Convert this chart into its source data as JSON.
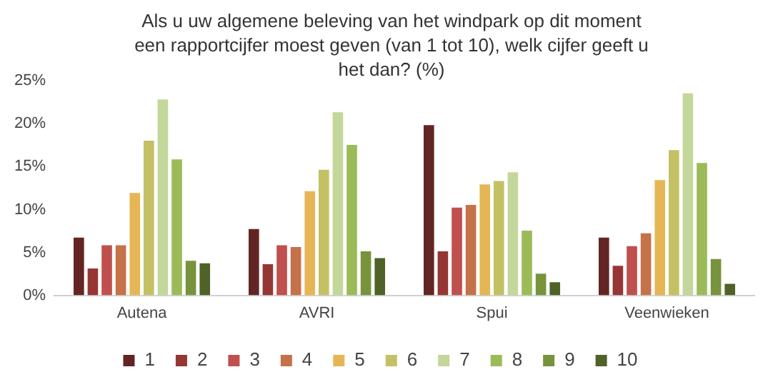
{
  "chart_data": {
    "type": "bar",
    "title": "Als u uw algemene beleving van het windpark op dit moment een rapportcijfer moest geven (van 1 tot 10), welk cijfer geeft u het dan? (%)",
    "categories": [
      "Autena",
      "AVRI",
      "Spui",
      "Veenwieken"
    ],
    "series": [
      {
        "name": "1",
        "color": "#632523",
        "values": [
          6.9,
          7.9,
          20.0,
          6.9
        ]
      },
      {
        "name": "2",
        "color": "#963634",
        "values": [
          3.3,
          3.8,
          5.3,
          3.6
        ]
      },
      {
        "name": "3",
        "color": "#c0504d",
        "values": [
          6.0,
          6.0,
          10.4,
          5.9
        ]
      },
      {
        "name": "4",
        "color": "#c5714a",
        "values": [
          6.0,
          5.8,
          10.7,
          7.4
        ]
      },
      {
        "name": "5",
        "color": "#e6b656",
        "values": [
          12.1,
          12.3,
          13.1,
          13.6
        ]
      },
      {
        "name": "6",
        "color": "#c3c163",
        "values": [
          18.2,
          14.8,
          13.5,
          17.1
        ]
      },
      {
        "name": "7",
        "color": "#c4d79b",
        "values": [
          23.0,
          21.5,
          14.5,
          23.7
        ]
      },
      {
        "name": "8",
        "color": "#9bbb59",
        "values": [
          16.0,
          17.7,
          7.7,
          15.6
        ]
      },
      {
        "name": "9",
        "color": "#77933c",
        "values": [
          4.2,
          5.3,
          2.7,
          4.4
        ]
      },
      {
        "name": "10",
        "color": "#4f6228",
        "values": [
          3.9,
          4.5,
          1.7,
          1.5
        ]
      }
    ],
    "ylim": [
      0,
      25
    ],
    "yticks": [
      {
        "value": 0,
        "label": "0%"
      },
      {
        "value": 5,
        "label": "5%"
      },
      {
        "value": 10,
        "label": "10%"
      },
      {
        "value": 15,
        "label": "15%"
      },
      {
        "value": 20,
        "label": "20%"
      },
      {
        "value": 25,
        "label": "25%"
      }
    ],
    "grid": false,
    "legend": "bottom"
  }
}
